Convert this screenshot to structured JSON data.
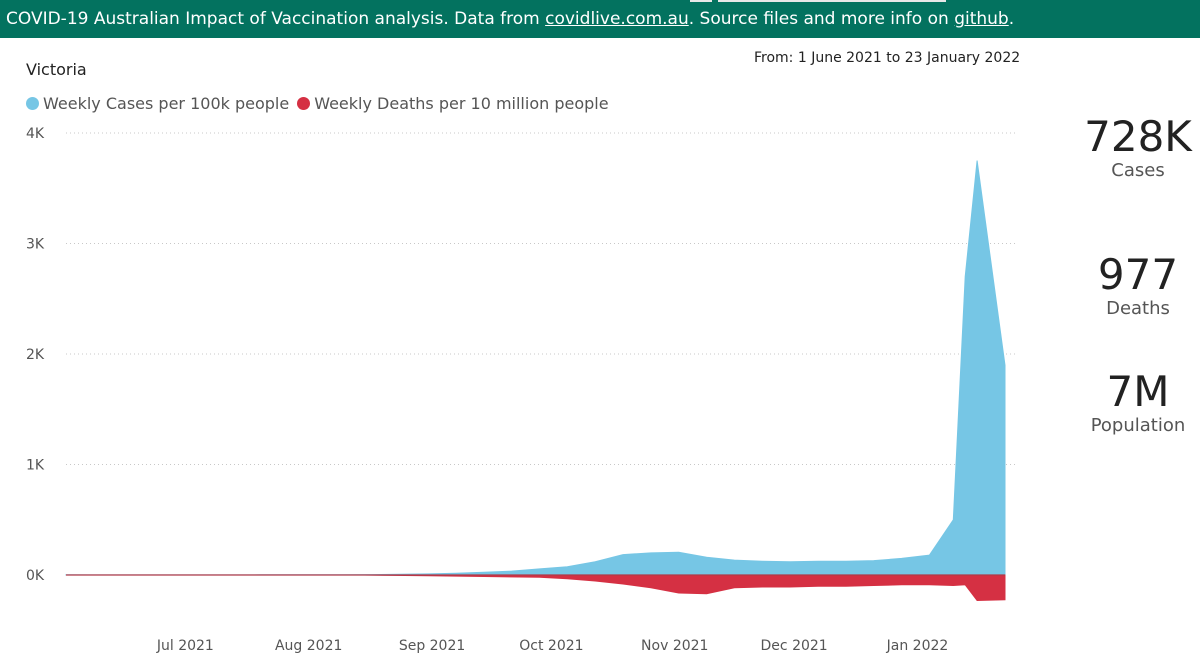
{
  "banner": {
    "text_before": "COVID-19 Australian Impact of Vaccination analysis. Data from ",
    "link1": "covidlive.com.au",
    "text_middle": ". Source files and more info on ",
    "link2": "github",
    "text_after": "."
  },
  "header": {
    "region": "Victoria",
    "date_range": "From: 1 June 2021 to 23 January 2022"
  },
  "kpis": [
    {
      "value": "728K",
      "label": "Cases"
    },
    {
      "value": "977",
      "label": "Deaths"
    },
    {
      "value": "7M",
      "label": "Population"
    }
  ],
  "colors": {
    "banner": "#03725f",
    "cases": "#76c6e5",
    "deaths": "#d53043"
  },
  "chart_data": {
    "type": "area",
    "title": "",
    "xlabel": "",
    "ylabel": "",
    "x_range": [
      "2021-06-01",
      "2022-01-23"
    ],
    "ylim": [
      0,
      4000
    ],
    "y_ticks": [
      {
        "value": 0,
        "label": "0K"
      },
      {
        "value": 1000,
        "label": "1K"
      },
      {
        "value": 2000,
        "label": "2K"
      },
      {
        "value": 3000,
        "label": "3K"
      },
      {
        "value": 4000,
        "label": "4K"
      }
    ],
    "x_ticks": [
      {
        "date": "2021-07-01",
        "label": "Jul 2021"
      },
      {
        "date": "2021-08-01",
        "label": "Aug 2021"
      },
      {
        "date": "2021-09-01",
        "label": "Sep 2021"
      },
      {
        "date": "2021-10-01",
        "label": "Oct 2021"
      },
      {
        "date": "2021-11-01",
        "label": "Nov 2021"
      },
      {
        "date": "2021-12-01",
        "label": "Dec 2021"
      },
      {
        "date": "2022-01-01",
        "label": "Jan 2022"
      }
    ],
    "grid": true,
    "legend_position": "top-left",
    "series": [
      {
        "name": "Weekly Cases per 100k people",
        "color": "#76c6e5",
        "direction": "up",
        "points": [
          [
            "2021-06-01",
            2
          ],
          [
            "2021-06-08",
            1
          ],
          [
            "2021-06-15",
            1
          ],
          [
            "2021-06-22",
            1
          ],
          [
            "2021-06-29",
            1
          ],
          [
            "2021-07-06",
            1
          ],
          [
            "2021-07-13",
            1
          ],
          [
            "2021-07-20",
            2
          ],
          [
            "2021-07-27",
            2
          ],
          [
            "2021-08-03",
            2
          ],
          [
            "2021-08-10",
            3
          ],
          [
            "2021-08-17",
            4
          ],
          [
            "2021-08-24",
            6
          ],
          [
            "2021-08-31",
            10
          ],
          [
            "2021-09-07",
            15
          ],
          [
            "2021-09-14",
            25
          ],
          [
            "2021-09-21",
            35
          ],
          [
            "2021-09-28",
            55
          ],
          [
            "2021-10-05",
            75
          ],
          [
            "2021-10-12",
            120
          ],
          [
            "2021-10-19",
            185
          ],
          [
            "2021-10-26",
            200
          ],
          [
            "2021-11-02",
            205
          ],
          [
            "2021-11-09",
            160
          ],
          [
            "2021-11-16",
            135
          ],
          [
            "2021-11-23",
            125
          ],
          [
            "2021-11-30",
            120
          ],
          [
            "2021-12-07",
            125
          ],
          [
            "2021-12-14",
            125
          ],
          [
            "2021-12-21",
            130
          ],
          [
            "2021-12-28",
            150
          ],
          [
            "2022-01-04",
            180
          ],
          [
            "2022-01-10",
            500
          ],
          [
            "2022-01-13",
            2700
          ],
          [
            "2022-01-16",
            3750
          ],
          [
            "2022-01-23",
            1900
          ]
        ]
      },
      {
        "name": "Weekly Deaths per 10 million people",
        "color": "#d53043",
        "direction": "down",
        "points": [
          [
            "2021-06-01",
            0
          ],
          [
            "2021-06-15",
            0
          ],
          [
            "2021-07-01",
            0
          ],
          [
            "2021-07-15",
            0
          ],
          [
            "2021-08-01",
            0
          ],
          [
            "2021-08-15",
            0
          ],
          [
            "2021-08-31",
            5
          ],
          [
            "2021-09-14",
            10
          ],
          [
            "2021-09-28",
            15
          ],
          [
            "2021-10-05",
            25
          ],
          [
            "2021-10-12",
            40
          ],
          [
            "2021-10-19",
            60
          ],
          [
            "2021-10-26",
            85
          ],
          [
            "2021-11-02",
            120
          ],
          [
            "2021-11-09",
            125
          ],
          [
            "2021-11-16",
            85
          ],
          [
            "2021-11-23",
            80
          ],
          [
            "2021-11-30",
            80
          ],
          [
            "2021-12-07",
            75
          ],
          [
            "2021-12-14",
            75
          ],
          [
            "2021-12-21",
            70
          ],
          [
            "2021-12-28",
            65
          ],
          [
            "2022-01-04",
            65
          ],
          [
            "2022-01-10",
            70
          ],
          [
            "2022-01-13",
            65
          ],
          [
            "2022-01-16",
            170
          ],
          [
            "2022-01-23",
            165
          ]
        ]
      }
    ]
  }
}
